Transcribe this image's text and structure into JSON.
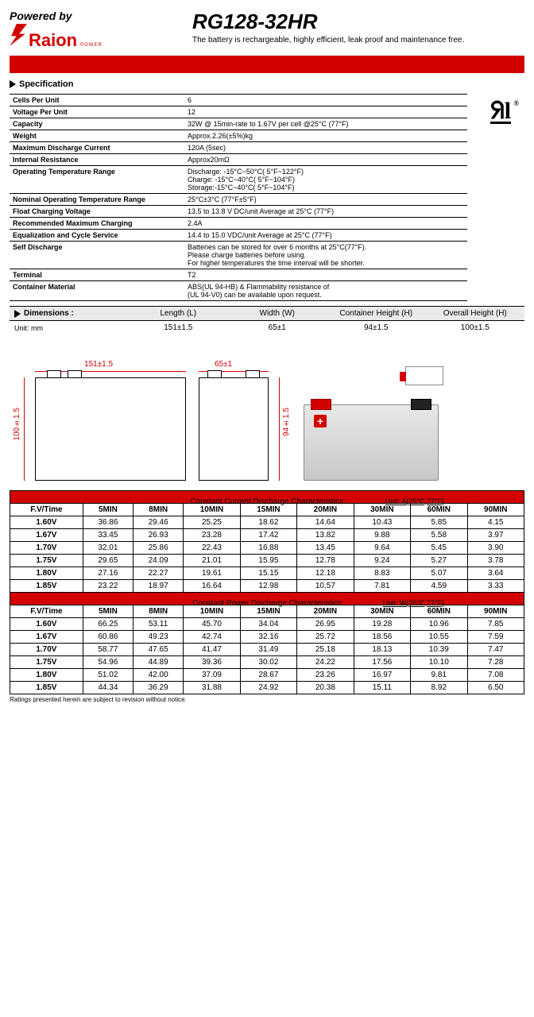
{
  "header": {
    "powered_by": "Powered by",
    "logo_text": "Raion",
    "logo_sub": "POWER",
    "product_title": "RG128-32HR",
    "subtitle": "The battery is rechargeable, highly efficient, leak proof and maintenance free."
  },
  "sections": {
    "specification": "Specification",
    "dimensions": "Dimensions :"
  },
  "specs": [
    {
      "label": "Cells Per Unit",
      "value": "6"
    },
    {
      "label": "Voltage Per Unit",
      "value": "12"
    },
    {
      "label": "Capacity",
      "value": "32W @ 15min-rate to 1.67V per cell @25°C (77°F)"
    },
    {
      "label": "Weight",
      "value": "Approx.2.26(±5%)kg"
    },
    {
      "label": "Maximum Discharge Current",
      "value": "120A (5sec)"
    },
    {
      "label": "Internal Resistance",
      "value": "Approx20mΩ"
    },
    {
      "label": "Operating Temperature Range",
      "value": "Discharge: -15°C~50°C( 5°F~122°F)\nCharge: -15°C~40°C( 5°F~104°F)\nStorage:-15°C~40°C( 5°F~104°F)"
    },
    {
      "label": "Nominal Operating Temperature Range",
      "value": "25°C±3°C (77°F±5°F)"
    },
    {
      "label": "Float Charging Voltage",
      "value": "13.5 to 13.8 V DC/unit Average at 25°C (77°F)"
    },
    {
      "label": "Recommended Maximum Charging",
      "value": "2.4A"
    },
    {
      "label": "Equalization and Cycle Service",
      "value": "14.4 to 15.0 VDC/unit Average at 25°C (77°F)"
    },
    {
      "label": "Self Discharge",
      "value": "Batteries can be stored for over 6 months at 25°C(77°F).\nPlease charge batteries before using.\nFor higher temperatures the time interval will be shorter."
    },
    {
      "label": "Terminal",
      "value": "T2"
    },
    {
      "label": "Container Material",
      "value": "ABS(UL 94-HB) & Flammability resistance of\n(UL 94-V0) can be available upon request."
    }
  ],
  "ul_mark": "ᵾl",
  "dimensions": {
    "unit_label": "Unit: mm",
    "cols": [
      "Length (L)",
      "Width (W)",
      "Container Height (H)",
      "Overall Height (H)"
    ],
    "values": [
      "151±1.5",
      "65±1",
      "94±1.5",
      "100±1.5"
    ]
  },
  "drawing_labels": {
    "length": "151±1.5",
    "width": "65±1",
    "height": "94±1.5",
    "overall_height": "100±1.5"
  },
  "table_current": {
    "title": "Constant Current Discharge Characteristics",
    "unit": "Unit: A(25℃,77°F)",
    "header_first": "F.V/Time",
    "cols": [
      "5MIN",
      "8MIN",
      "10MIN",
      "15MIN",
      "20MIN",
      "30MIN",
      "60MIN",
      "90MIN"
    ],
    "rows": [
      {
        "v": "1.60V",
        "d": [
          "36.86",
          "29.46",
          "25.25",
          "18.62",
          "14.64",
          "10.43",
          "5.85",
          "4.15"
        ]
      },
      {
        "v": "1.67V",
        "d": [
          "33.45",
          "26.93",
          "23.28",
          "17.42",
          "13.82",
          "9.88",
          "5.58",
          "3.97"
        ]
      },
      {
        "v": "1.70V",
        "d": [
          "32.01",
          "25.86",
          "22.43",
          "16.88",
          "13.45",
          "9.64",
          "5.45",
          "3.90"
        ]
      },
      {
        "v": "1.75V",
        "d": [
          "29.65",
          "24.09",
          "21.01",
          "15.95",
          "12.78",
          "9.24",
          "5.27",
          "3.78"
        ]
      },
      {
        "v": "1.80V",
        "d": [
          "27.16",
          "22.27",
          "19.61",
          "15.15",
          "12.18",
          "8.83",
          "5.07",
          "3.64"
        ]
      },
      {
        "v": "1.85V",
        "d": [
          "23.22",
          "18.97",
          "16.64",
          "12.98",
          "10.57",
          "7.81",
          "4.59",
          "3.33"
        ]
      }
    ]
  },
  "table_power": {
    "title": "Constant Power Discharge Characteristics",
    "unit": "Unit: W(25℃,77°F)",
    "header_first": "F.V/Time",
    "cols": [
      "5MIN",
      "8MIN",
      "10MIN",
      "15MIN",
      "20MIN",
      "30MIN",
      "60MIN",
      "90MIN"
    ],
    "rows": [
      {
        "v": "1.60V",
        "d": [
          "66.25",
          "53.11",
          "45.70",
          "34.04",
          "26.95",
          "19.28",
          "10.96",
          "7.85"
        ]
      },
      {
        "v": "1.67V",
        "d": [
          "60.86",
          "49.23",
          "42.74",
          "32.16",
          "25.72",
          "18.56",
          "10.55",
          "7.59"
        ]
      },
      {
        "v": "1.70V",
        "d": [
          "58.77",
          "47.65",
          "41.47",
          "31.49",
          "25.18",
          "18.13",
          "10.39",
          "7.47"
        ]
      },
      {
        "v": "1.75V",
        "d": [
          "54.96",
          "44.89",
          "39.36",
          "30.02",
          "24.22",
          "17.56",
          "10.10",
          "7.28"
        ]
      },
      {
        "v": "1.80V",
        "d": [
          "51.02",
          "42.00",
          "37.09",
          "28.67",
          "23.26",
          "16.97",
          "9.81",
          "7.08"
        ]
      },
      {
        "v": "1.85V",
        "d": [
          "44.34",
          "36.29",
          "31.88",
          "24.92",
          "20.38",
          "15.11",
          "8.92",
          "6.50"
        ]
      }
    ]
  },
  "footnote": "Ratings presented herein are subject to revision without notice.",
  "colors": {
    "accent": "#d40000",
    "header_bg": "#eaeaea",
    "border": "#000000"
  }
}
